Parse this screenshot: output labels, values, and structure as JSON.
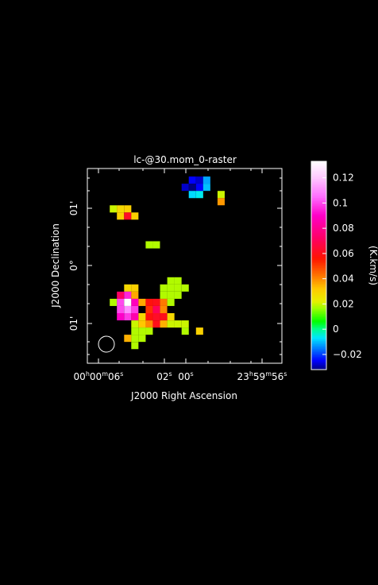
{
  "chart_data": {
    "type": "heatmap",
    "title": "lc-@30.mom_0-raster",
    "xlabel": "J2000 Right Ascension",
    "ylabel": "J2000 Declination",
    "colorbar_label": "(K.km/s)",
    "x_ticks": [
      {
        "h": "00",
        "m": "00",
        "s": "06"
      },
      {
        "s": "02"
      },
      {
        "s": "00"
      },
      {
        "h": "23",
        "m": "59",
        "s": "56"
      }
    ],
    "y_ticks": [
      "01'",
      "0°",
      "01'"
    ],
    "colorbar": {
      "range": [
        -0.032,
        0.133
      ],
      "ticks": [
        "0.12",
        "0.1",
        "0.08",
        "0.06",
        "0.04",
        "0.02",
        "0",
        "−0.02"
      ],
      "tick_values": [
        0.12,
        0.1,
        0.08,
        0.06,
        0.04,
        0.02,
        0,
        -0.02
      ]
    },
    "grid": {
      "cols": 20,
      "rows": 20
    },
    "pixels": [
      [
        14,
        1,
        -0.025
      ],
      [
        15,
        1,
        -0.028
      ],
      [
        16,
        1,
        -0.012
      ],
      [
        13,
        2,
        -0.028
      ],
      [
        14,
        2,
        -0.032
      ],
      [
        15,
        2,
        -0.025
      ],
      [
        16,
        2,
        -0.01
      ],
      [
        14,
        3,
        -0.008
      ],
      [
        15,
        3,
        -0.006
      ],
      [
        18,
        3,
        0.02
      ],
      [
        18,
        4,
        0.038
      ],
      [
        3,
        5,
        0.02
      ],
      [
        4,
        5,
        0.028
      ],
      [
        5,
        5,
        0.03
      ],
      [
        4,
        6,
        0.03
      ],
      [
        5,
        6,
        0.062
      ],
      [
        6,
        6,
        0.03
      ],
      [
        8,
        10,
        0.018
      ],
      [
        9,
        10,
        0.018
      ],
      [
        11,
        15,
        0.018
      ],
      [
        12,
        15,
        0.018
      ],
      [
        5,
        16,
        0.028
      ],
      [
        6,
        16,
        0.03
      ],
      [
        10,
        16,
        0.018
      ],
      [
        11,
        16,
        0.018
      ],
      [
        12,
        16,
        0.018
      ],
      [
        13,
        16,
        0.018
      ],
      [
        4,
        17,
        0.072
      ],
      [
        5,
        17,
        0.095
      ],
      [
        6,
        17,
        0.036
      ],
      [
        10,
        17,
        0.018
      ],
      [
        11,
        17,
        0.018
      ],
      [
        12,
        17,
        0.018
      ],
      [
        3,
        18,
        0.018
      ],
      [
        4,
        18,
        0.1
      ],
      [
        5,
        18,
        0.133
      ],
      [
        6,
        18,
        0.088
      ],
      [
        7,
        18,
        0.036
      ],
      [
        8,
        18,
        0.058
      ],
      [
        9,
        18,
        0.06
      ],
      [
        10,
        18,
        0.042
      ],
      [
        11,
        18,
        0.018
      ],
      [
        4,
        19,
        0.1
      ],
      [
        5,
        19,
        0.11
      ],
      [
        6,
        19,
        0.098
      ],
      [
        8,
        19,
        0.052
      ],
      [
        9,
        19,
        0.07
      ],
      [
        10,
        19,
        0.04
      ],
      [
        4,
        20,
        0.09
      ],
      [
        5,
        20,
        0.098
      ],
      [
        6,
        20,
        0.085
      ],
      [
        7,
        20,
        0.028
      ],
      [
        8,
        20,
        0.058
      ],
      [
        9,
        20,
        0.062
      ],
      [
        10,
        20,
        0.06
      ],
      [
        11,
        20,
        0.028
      ],
      [
        6,
        21,
        0.02
      ],
      [
        7,
        21,
        0.032
      ],
      [
        8,
        21,
        0.04
      ],
      [
        9,
        21,
        0.06
      ],
      [
        10,
        21,
        0.035
      ],
      [
        11,
        21,
        0.02
      ],
      [
        12,
        21,
        0.02
      ],
      [
        13,
        21,
        0.02
      ],
      [
        6,
        22,
        0.018
      ],
      [
        7,
        22,
        0.018
      ],
      [
        8,
        22,
        0.018
      ],
      [
        13,
        22,
        0.018
      ],
      [
        15,
        22,
        0.03
      ],
      [
        5,
        23,
        0.035
      ],
      [
        6,
        23,
        0.018
      ],
      [
        7,
        23,
        0.018
      ],
      [
        6,
        24,
        0.018
      ]
    ]
  }
}
